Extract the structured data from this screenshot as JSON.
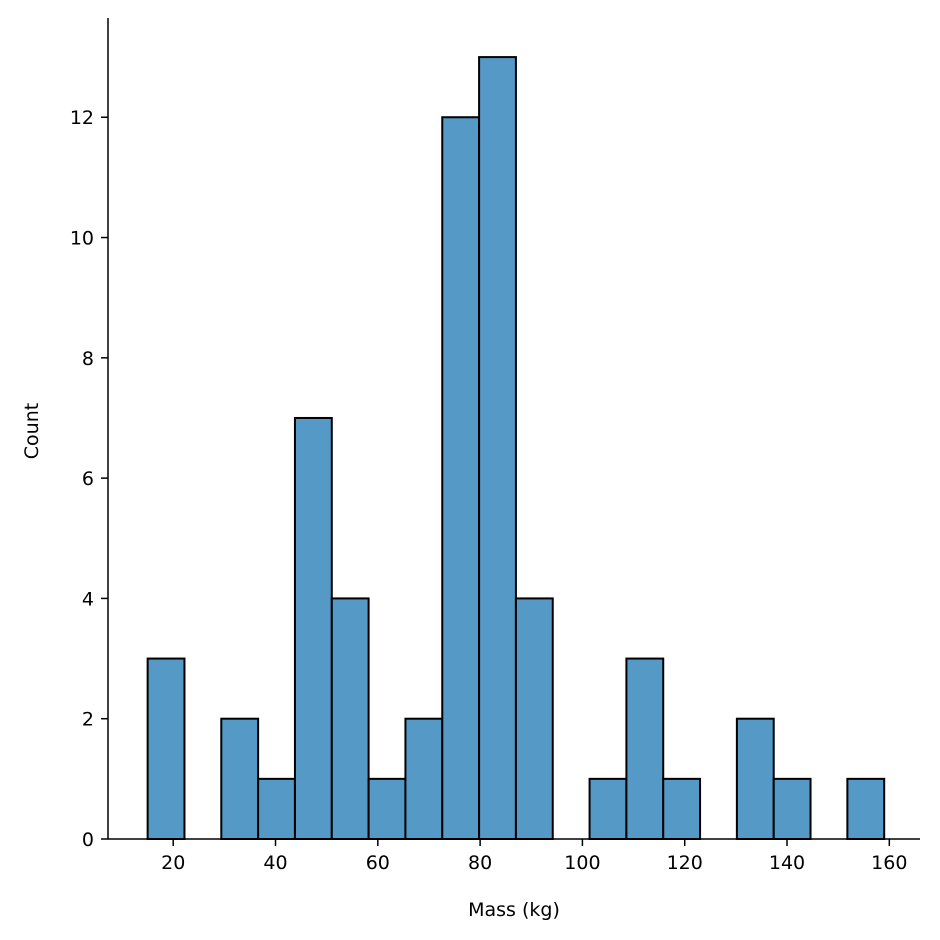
{
  "colors": {
    "bar_fill": "#5599c7",
    "bar_edge": "#000000"
  },
  "chart_data": {
    "type": "histogram",
    "title": "",
    "xlabel": "Mass (kg)",
    "ylabel": "Count",
    "xlim": [
      7.25,
      166.0
    ],
    "ylim": [
      0,
      13.65
    ],
    "x_ticks": [
      20,
      40,
      60,
      80,
      100,
      120,
      140,
      160
    ],
    "y_ticks": [
      0,
      2,
      4,
      6,
      8,
      10,
      12
    ],
    "bins": [
      {
        "start": 15.0,
        "end": 22.2,
        "count": 3
      },
      {
        "start": 22.2,
        "end": 29.4,
        "count": 0
      },
      {
        "start": 29.4,
        "end": 36.6,
        "count": 2
      },
      {
        "start": 36.6,
        "end": 43.8,
        "count": 1
      },
      {
        "start": 43.8,
        "end": 51.0,
        "count": 7
      },
      {
        "start": 51.0,
        "end": 58.2,
        "count": 4
      },
      {
        "start": 58.2,
        "end": 65.4,
        "count": 1
      },
      {
        "start": 65.4,
        "end": 72.6,
        "count": 2
      },
      {
        "start": 72.6,
        "end": 79.8,
        "count": 12
      },
      {
        "start": 79.8,
        "end": 87.0,
        "count": 13
      },
      {
        "start": 87.0,
        "end": 94.2,
        "count": 4
      },
      {
        "start": 94.2,
        "end": 101.4,
        "count": 0
      },
      {
        "start": 101.4,
        "end": 108.6,
        "count": 1
      },
      {
        "start": 108.6,
        "end": 115.8,
        "count": 3
      },
      {
        "start": 115.8,
        "end": 123.0,
        "count": 1
      },
      {
        "start": 123.0,
        "end": 130.2,
        "count": 0
      },
      {
        "start": 130.2,
        "end": 137.4,
        "count": 2
      },
      {
        "start": 137.4,
        "end": 144.6,
        "count": 1
      },
      {
        "start": 144.6,
        "end": 151.8,
        "count": 0
      },
      {
        "start": 151.8,
        "end": 159.0,
        "count": 1
      }
    ],
    "grid": false,
    "legend": "none"
  }
}
